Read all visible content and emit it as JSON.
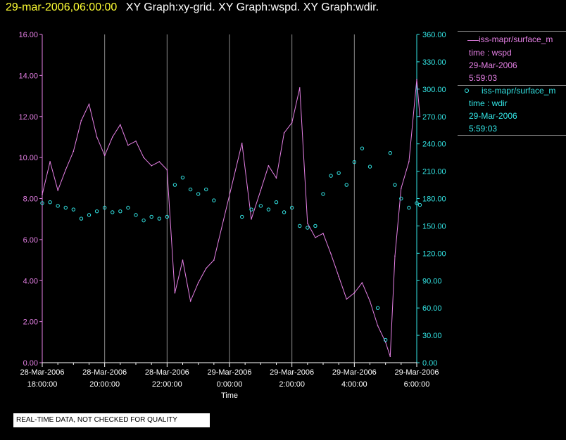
{
  "title": {
    "date": "29-mar-2006,06:00:00",
    "graphs": "XY Graph:xy-grid.  XY Graph:wspd.  XY Graph:wdir."
  },
  "colors": {
    "wspd": "#e680e6",
    "wdir": "#33e6e6",
    "title_date": "#ffff33",
    "axis_text": "#ffffff",
    "grid": "#8c8c8c"
  },
  "legend": {
    "series1": {
      "name": "iss-mapr/surface_m",
      "line": "time : wspd",
      "date": "29-Mar-2006",
      "time": "5:59:03"
    },
    "series2": {
      "name": "iss-mapr/surface_m",
      "line": "time : wdir",
      "date": "29-Mar-2006",
      "time": "5:59:03"
    }
  },
  "quality_note": "REAL-TIME DATA, NOT CHECKED FOR QUALITY",
  "chart_data": {
    "type": "line",
    "xlabel": "Time",
    "x_ticks": [
      {
        "hour": 18,
        "date": "28-Mar-2006",
        "time": "18:00:00"
      },
      {
        "hour": 20,
        "date": "28-Mar-2006",
        "time": "20:00:00"
      },
      {
        "hour": 22,
        "date": "28-Mar-2006",
        "time": "22:00:00"
      },
      {
        "hour": 24,
        "date": "29-Mar-2006",
        "time": "0:00:00"
      },
      {
        "hour": 26,
        "date": "29-Mar-2006",
        "time": "2:00:00"
      },
      {
        "hour": 28,
        "date": "29-Mar-2006",
        "time": "4:00:00"
      },
      {
        "hour": 30,
        "date": "29-Mar-2006",
        "time": "6:00:00"
      }
    ],
    "xlim": [
      18,
      30
    ],
    "y_left": {
      "ylim": [
        0,
        16
      ],
      "ticks": [
        "0.00",
        "2.00",
        "4.00",
        "6.00",
        "8.00",
        "10.00",
        "12.00",
        "14.00",
        "16.00"
      ]
    },
    "y_right": {
      "ylim": [
        0,
        360
      ],
      "ticks": [
        "0.00",
        "30.00",
        "60.00",
        "90.00",
        "120.00",
        "150.00",
        "180.00",
        "210.00",
        "240.00",
        "270.00",
        "300.00",
        "330.00",
        "360.00"
      ]
    },
    "grid": "vertical",
    "series": [
      {
        "name": "wspd",
        "axis": "left",
        "style": "line",
        "points": [
          [
            18.0,
            8.2
          ],
          [
            18.25,
            9.8
          ],
          [
            18.5,
            8.4
          ],
          [
            18.75,
            9.4
          ],
          [
            19.0,
            10.3
          ],
          [
            19.25,
            11.8
          ],
          [
            19.5,
            12.6
          ],
          [
            19.75,
            11.0
          ],
          [
            20.0,
            10.1
          ],
          [
            20.25,
            11.0
          ],
          [
            20.5,
            11.6
          ],
          [
            20.75,
            10.6
          ],
          [
            21.0,
            10.8
          ],
          [
            21.25,
            10.0
          ],
          [
            21.5,
            9.6
          ],
          [
            21.75,
            9.8
          ],
          [
            22.0,
            9.4
          ],
          [
            22.25,
            3.4
          ],
          [
            22.5,
            5.0
          ],
          [
            22.75,
            3.0
          ],
          [
            23.0,
            3.9
          ],
          [
            23.25,
            4.6
          ],
          [
            23.5,
            5.0
          ],
          [
            24.4,
            10.7
          ],
          [
            24.7,
            7.0
          ],
          [
            25.0,
            8.4
          ],
          [
            25.25,
            9.6
          ],
          [
            25.5,
            9.0
          ],
          [
            25.75,
            11.2
          ],
          [
            26.0,
            11.7
          ],
          [
            26.25,
            13.4
          ],
          [
            26.5,
            6.8
          ],
          [
            26.75,
            6.1
          ],
          [
            27.0,
            6.3
          ],
          [
            27.25,
            5.3
          ],
          [
            27.5,
            4.2
          ],
          [
            27.75,
            3.1
          ],
          [
            28.0,
            3.4
          ],
          [
            28.25,
            3.9
          ],
          [
            28.5,
            3.0
          ],
          [
            28.75,
            1.8
          ],
          [
            29.0,
            1.0
          ],
          [
            29.15,
            0.3
          ],
          [
            29.3,
            5.2
          ],
          [
            29.5,
            8.5
          ],
          [
            29.75,
            9.8
          ],
          [
            30.0,
            13.8
          ],
          [
            30.1,
            12.0
          ]
        ]
      },
      {
        "name": "wdir",
        "axis": "right",
        "style": "markers",
        "points": [
          [
            18.0,
            175
          ],
          [
            18.25,
            176
          ],
          [
            18.5,
            172
          ],
          [
            18.75,
            170
          ],
          [
            19.0,
            168
          ],
          [
            19.25,
            158
          ],
          [
            19.5,
            162
          ],
          [
            19.75,
            166
          ],
          [
            20.0,
            170
          ],
          [
            20.25,
            165
          ],
          [
            20.5,
            166
          ],
          [
            20.75,
            170
          ],
          [
            21.0,
            162
          ],
          [
            21.25,
            156
          ],
          [
            21.5,
            160
          ],
          [
            21.75,
            158
          ],
          [
            22.0,
            160
          ],
          [
            22.25,
            195
          ],
          [
            22.5,
            203
          ],
          [
            22.75,
            190
          ],
          [
            23.0,
            185
          ],
          [
            23.25,
            190
          ],
          [
            23.5,
            178
          ],
          [
            24.4,
            160
          ],
          [
            24.7,
            168
          ],
          [
            25.0,
            172
          ],
          [
            25.25,
            168
          ],
          [
            25.5,
            176
          ],
          [
            25.75,
            165
          ],
          [
            26.0,
            170
          ],
          [
            26.25,
            150
          ],
          [
            26.5,
            148
          ],
          [
            26.75,
            150
          ],
          [
            27.0,
            185
          ],
          [
            27.25,
            205
          ],
          [
            27.5,
            208
          ],
          [
            27.75,
            195
          ],
          [
            28.0,
            220
          ],
          [
            28.25,
            235
          ],
          [
            28.5,
            215
          ],
          [
            28.75,
            60
          ],
          [
            29.0,
            25
          ],
          [
            29.15,
            230
          ],
          [
            29.3,
            195
          ],
          [
            29.5,
            180
          ],
          [
            29.75,
            170
          ],
          [
            30.0,
            175
          ],
          [
            30.1,
            173
          ]
        ]
      }
    ]
  }
}
